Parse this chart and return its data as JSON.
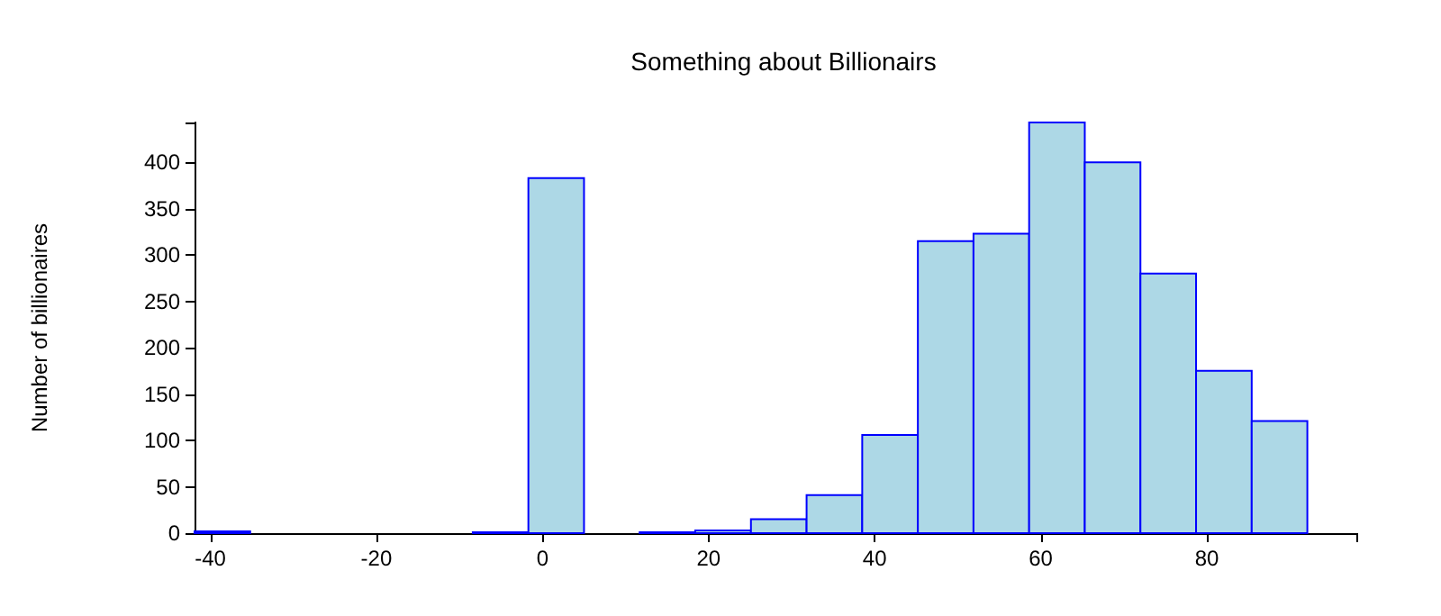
{
  "chart_data": {
    "type": "histogram",
    "title": "Something about Billionairs",
    "ylabel": "Number of billionaires",
    "bins": [
      -41.9,
      -35.2,
      -28.5,
      -21.8,
      -15.1,
      -8.4,
      -1.7,
      5,
      11.7,
      18.4,
      25.1,
      31.8,
      38.5,
      45.2,
      51.9,
      58.6,
      65.3,
      72,
      78.7,
      85.4,
      92.1
    ],
    "values": [
      2,
      0,
      0,
      0,
      0,
      1,
      383,
      0,
      1,
      3,
      15,
      41,
      106,
      315,
      323,
      443,
      400,
      280,
      175,
      121
    ],
    "color": "#add8e6",
    "xlim": [
      -41.9,
      98
    ],
    "xticks": [
      -40,
      -20,
      0,
      20,
      40,
      60,
      80,
      {
        "value": 98,
        "label": null
      }
    ],
    "ylim": [
      0,
      443
    ],
    "yticks": [
      0,
      50,
      100,
      150,
      200,
      250,
      300,
      350,
      400,
      {
        "value": 443,
        "label": null
      }
    ],
    "grid": false
  }
}
